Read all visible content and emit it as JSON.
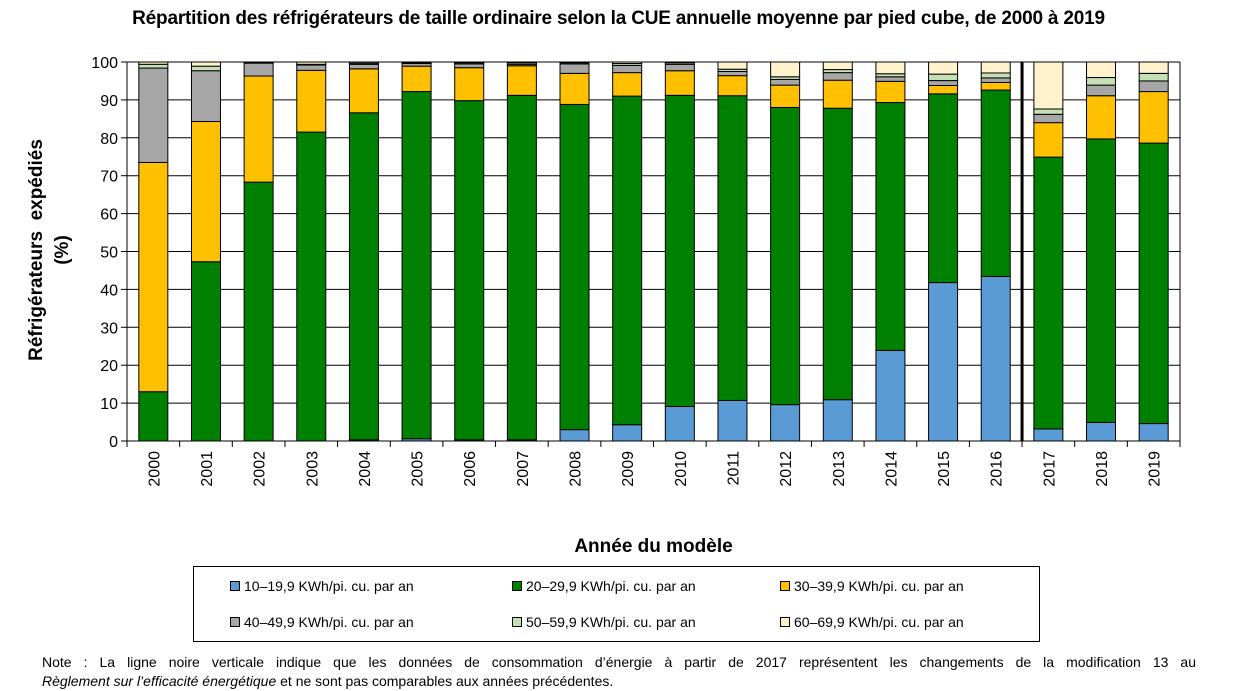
{
  "chart_data": {
    "type": "bar",
    "stacked": true,
    "title": "Répartition des réfrigérateurs de taille ordinaire selon la CUE annuelle moyenne par pied cube, de 2000 à 2019",
    "xlabel": "Année du modèle",
    "ylabel_line1": "Réfrigérateurs  expédiés",
    "ylabel_line2": "(%)",
    "ylim": [
      0,
      100
    ],
    "yticks": [
      "0",
      "10",
      "20",
      "30",
      "40",
      "50",
      "60",
      "70",
      "80",
      "90",
      "100"
    ],
    "grid": true,
    "legend_position": "bottom",
    "categories": [
      "2000",
      "2001",
      "2002",
      "2003",
      "2004",
      "2005",
      "2006",
      "2007",
      "2008",
      "2009",
      "2010",
      "2011",
      "2012",
      "2013",
      "2014",
      "2015",
      "2016",
      "2017",
      "2018",
      "2019"
    ],
    "separator_after": "2016",
    "series": [
      {
        "name": "10–19,9 KWh/pi. cu. par an",
        "color": "#5B9BD5",
        "values": [
          0,
          0,
          0,
          0,
          0.3,
          0.6,
          0.3,
          0.3,
          3,
          4.3,
          9.1,
          10.7,
          9.6,
          10.9,
          23.9,
          41.8,
          43.4,
          3.2,
          4.9,
          4.6
        ]
      },
      {
        "name": "20–29,9 KWh/pi. cu. par an",
        "color": "#008000",
        "values": [
          13,
          47.3,
          68.3,
          81.5,
          86.3,
          91.6,
          89.5,
          90.9,
          85.8,
          86.7,
          82.1,
          80.4,
          78.4,
          76.9,
          65.4,
          49.8,
          49.2,
          71.7,
          74.8,
          74
        ]
      },
      {
        "name": "30–39,9 KWh/pi. cu. par an",
        "color": "#FFC000",
        "values": [
          60.5,
          37,
          28,
          16.3,
          11.6,
          6.7,
          8.7,
          7.8,
          8.2,
          6.2,
          6.5,
          5.3,
          5.9,
          7.4,
          5.6,
          2.2,
          2,
          9.1,
          11.4,
          13.6
        ]
      },
      {
        "name": "40–49,9 KWh/pi. cu. par an",
        "color": "#A6A6A6",
        "values": [
          24.9,
          13.4,
          3.4,
          1.4,
          1.2,
          0.7,
          1,
          0.4,
          2.5,
          1.9,
          1.7,
          1.1,
          1.5,
          2,
          1.2,
          1.3,
          1.2,
          2.2,
          2.8,
          2.8
        ]
      },
      {
        "name": "50–59,9 KWh/pi. cu. par an",
        "color": "#C5E0B4",
        "values": [
          1,
          1.2,
          0.2,
          0.2,
          0.3,
          0.2,
          0.3,
          0.4,
          0.3,
          0.5,
          0.4,
          0.6,
          0.7,
          0.8,
          0.8,
          1.7,
          1.3,
          1.4,
          2,
          2
        ]
      },
      {
        "name": "60–69,9 KWh/pi. cu. par an",
        "color": "#FFF2CC",
        "values": [
          0.6,
          1.1,
          0.1,
          0.6,
          0.3,
          0.2,
          0.2,
          0.2,
          0.2,
          0.4,
          0.2,
          1.9,
          3.9,
          2,
          3.1,
          3.2,
          2.9,
          12.4,
          4.1,
          3
        ]
      }
    ]
  },
  "note": {
    "line1": "Note : La ligne noire verticale indique que les données de consommation d’énergie à partir de 2017 représentent les changements de la modification 13 au",
    "regulation": "Règlement sur l’efficacité énergétique",
    "line2_rest": " et ne sont pas comparables aux années précédentes."
  }
}
